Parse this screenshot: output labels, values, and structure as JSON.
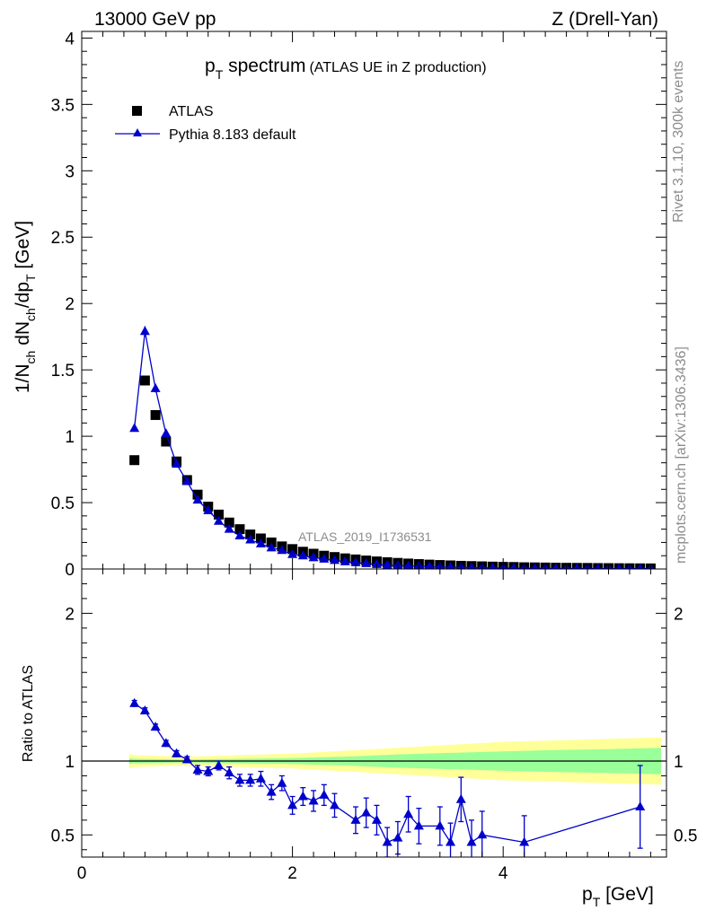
{
  "header": {
    "energy_label": "13000 GeV pp",
    "process_label": "Z (Drell-Yan)"
  },
  "side_labels": {
    "rivet": "Rivet 3.1.10,  300k events",
    "mcplots": "mcplots.cern.ch [arXiv:1306.3436]"
  },
  "chart_data": [
    {
      "type": "scatter",
      "panel": "main",
      "title_main": "p",
      "title_sub": "T",
      "title_rest": " spectrum",
      "title_note": "(ATLAS UE in Z production)",
      "ylabel_parts": [
        "1/N",
        "ch",
        " dN",
        "ch",
        "/dp",
        "T",
        " [GeV]"
      ],
      "analysis_label": "ATLAS_2019_I1736531",
      "xlim": [
        0,
        5.55
      ],
      "ylim": [
        0,
        4.05
      ],
      "yticks": [
        0,
        0.5,
        1,
        1.5,
        2,
        2.5,
        3,
        3.5,
        4
      ],
      "ytick_labels": [
        "0",
        "0.5",
        "1",
        "1.5",
        "2",
        "2.5",
        "3",
        "3.5",
        "4"
      ],
      "legend": [
        {
          "label": "ATLAS",
          "marker": "square"
        },
        {
          "label": "Pythia 8.183 default",
          "marker": "triangle-line"
        }
      ],
      "series": [
        {
          "name": "ATLAS",
          "color": "#000000",
          "x": [
            0.5,
            0.6,
            0.7,
            0.8,
            0.9,
            1.0,
            1.1,
            1.2,
            1.3,
            1.4,
            1.5,
            1.6,
            1.7,
            1.8,
            1.9,
            2.0,
            2.1,
            2.2,
            2.3,
            2.4,
            2.5,
            2.6,
            2.7,
            2.8,
            2.9,
            3.0,
            3.1,
            3.2,
            3.3,
            3.4,
            3.5,
            3.6,
            3.7,
            3.8,
            3.9,
            4.0,
            4.1,
            4.2,
            4.3,
            4.4,
            4.5,
            4.6,
            4.7,
            4.8,
            4.9,
            5.0,
            5.1,
            5.2,
            5.3,
            5.4
          ],
          "y": [
            0.82,
            1.42,
            1.16,
            0.96,
            0.81,
            0.67,
            0.56,
            0.47,
            0.41,
            0.35,
            0.3,
            0.26,
            0.23,
            0.2,
            0.17,
            0.15,
            0.13,
            0.115,
            0.1,
            0.09,
            0.08,
            0.072,
            0.064,
            0.057,
            0.051,
            0.046,
            0.041,
            0.037,
            0.033,
            0.03,
            0.027,
            0.024,
            0.022,
            0.02,
            0.018,
            0.016,
            0.015,
            0.013,
            0.012,
            0.011,
            0.01,
            0.009,
            0.0085,
            0.008,
            0.007,
            0.0065,
            0.006,
            0.0055,
            0.005,
            0.0045
          ]
        },
        {
          "name": "Pythia 8.183 default",
          "color": "#0000cc",
          "x": [
            0.5,
            0.6,
            0.7,
            0.8,
            0.9,
            1.0,
            1.1,
            1.2,
            1.3,
            1.4,
            1.5,
            1.6,
            1.7,
            1.8,
            1.9,
            2.0,
            2.1,
            2.2,
            2.3,
            2.4,
            2.5,
            2.6,
            2.7,
            2.8,
            2.9,
            3.0,
            3.1,
            3.2,
            3.3,
            3.4,
            3.5,
            3.6,
            3.7,
            3.8,
            3.9,
            4.0,
            4.1,
            4.2,
            4.3,
            4.4,
            4.5,
            4.6,
            4.7,
            4.8,
            4.9,
            5.0,
            5.1,
            5.2,
            5.3,
            5.4
          ],
          "y": [
            1.06,
            1.79,
            1.36,
            1.02,
            0.79,
            0.66,
            0.52,
            0.44,
            0.36,
            0.3,
            0.25,
            0.22,
            0.19,
            0.16,
            0.14,
            0.11,
            0.1,
            0.085,
            0.075,
            0.065,
            0.055,
            0.048,
            0.041,
            0.035,
            0.03,
            0.026,
            0.023,
            0.02,
            0.017,
            0.015,
            0.013,
            0.012,
            0.01,
            0.009,
            0.008,
            0.007,
            0.006,
            0.0055,
            0.005,
            0.0045,
            0.004,
            0.0035,
            0.003,
            0.003,
            0.0025,
            0.0025,
            0.002,
            0.002,
            0.002,
            0.0018
          ],
          "yerr": [
            0.02,
            0.04,
            0.03,
            0.02,
            0.015,
            0.01,
            0.01,
            0.01,
            0.01,
            0.01,
            0.01,
            0.01,
            0.01,
            0.01,
            0.01,
            0.008,
            0.008,
            0.008,
            0.008,
            0.008,
            0.006,
            0.006,
            0.006,
            0.006,
            0.006,
            0.005,
            0.005,
            0.005,
            0.005,
            0.005,
            0.004,
            0.004,
            0.004,
            0.004,
            0.004,
            0.003,
            0.003,
            0.003,
            0.003,
            0.003,
            0.003,
            0.003,
            0.003,
            0.003,
            0.003,
            0.003,
            0.003,
            0.003,
            0.003,
            0.003
          ]
        }
      ]
    },
    {
      "type": "line",
      "panel": "ratio",
      "ylabel": "Ratio to ATLAS",
      "xlabel_main": "p",
      "xlabel_sub": "T",
      "xlabel_rest": " [GeV]",
      "xlim": [
        0,
        5.55
      ],
      "ylim": [
        0.35,
        2.3
      ],
      "xticks": [
        0,
        2,
        4
      ],
      "xtick_labels": [
        "0",
        "2",
        "4"
      ],
      "yticks": [
        0.5,
        1,
        2
      ],
      "ytick_labels": [
        "0.5",
        "1",
        "2"
      ],
      "bands": {
        "x": [
          0.45,
          0.5,
          1.0,
          1.5,
          2.0,
          2.5,
          3.0,
          3.5,
          4.0,
          4.5,
          5.0,
          5.5
        ],
        "yellow_half": [
          0.05,
          0.04,
          0.03,
          0.04,
          0.05,
          0.07,
          0.09,
          0.11,
          0.13,
          0.14,
          0.15,
          0.16
        ],
        "green_half": [
          0.02,
          0.015,
          0.01,
          0.015,
          0.02,
          0.03,
          0.045,
          0.055,
          0.065,
          0.075,
          0.08,
          0.09
        ],
        "yellow_color": "#ffff99",
        "green_color": "#99ff99"
      },
      "series": [
        {
          "name": "Pythia 8.183 default / ATLAS",
          "color": "#0000cc",
          "x": [
            0.5,
            0.6,
            0.7,
            0.8,
            0.9,
            1.0,
            1.1,
            1.2,
            1.3,
            1.4,
            1.5,
            1.6,
            1.7,
            1.8,
            1.9,
            2.0,
            2.1,
            2.2,
            2.3,
            2.4,
            2.6,
            2.7,
            2.8,
            2.9,
            3.0,
            3.1,
            3.2,
            3.4,
            3.5,
            3.6,
            3.7,
            3.8,
            4.2,
            5.3
          ],
          "y": [
            1.39,
            1.34,
            1.23,
            1.12,
            1.05,
            1.01,
            0.94,
            0.93,
            0.97,
            0.92,
            0.87,
            0.87,
            0.88,
            0.79,
            0.85,
            0.7,
            0.76,
            0.73,
            0.77,
            0.7,
            0.6,
            0.65,
            0.6,
            0.45,
            0.48,
            0.64,
            0.56,
            0.56,
            0.45,
            0.74,
            0.45,
            0.5,
            0.45,
            0.69
          ],
          "yerr": [
            0.02,
            0.02,
            0.02,
            0.02,
            0.02,
            0.02,
            0.03,
            0.03,
            0.03,
            0.04,
            0.04,
            0.04,
            0.05,
            0.05,
            0.05,
            0.06,
            0.06,
            0.07,
            0.07,
            0.08,
            0.09,
            0.1,
            0.1,
            0.1,
            0.11,
            0.12,
            0.12,
            0.13,
            0.13,
            0.15,
            0.15,
            0.16,
            0.18,
            0.28
          ]
        }
      ]
    }
  ]
}
